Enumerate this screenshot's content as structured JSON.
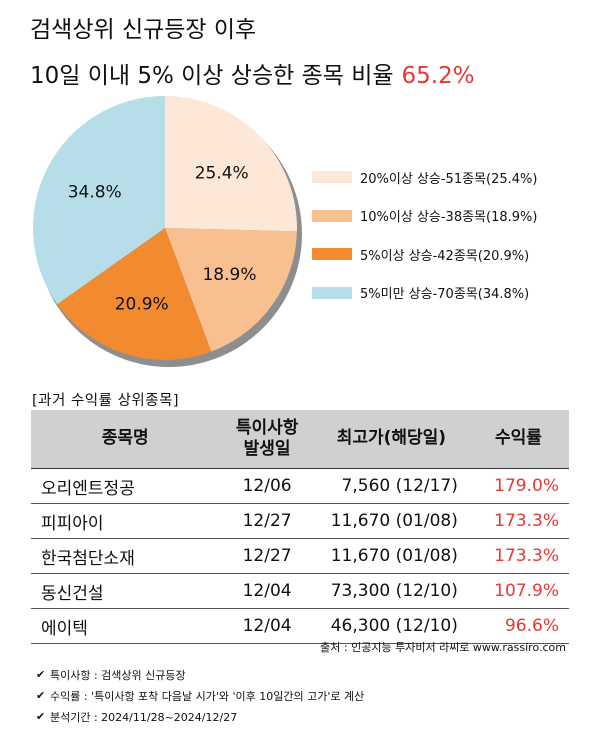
{
  "title": {
    "line1": "검색상위 신규등장 이후",
    "line2": "10일 이내 5% 이상 상승한 종목 비율",
    "highlight": "65.2%"
  },
  "chart_data": {
    "type": "pie",
    "slices": [
      {
        "label": "25.4%",
        "value": 25.4,
        "color": "#fde8d8",
        "legend": "20%이상 상승-51종목(25.4%)"
      },
      {
        "label": "18.9%",
        "value": 18.9,
        "color": "#f8bf90",
        "legend": "10%이상 상승-38종목(18.9%)"
      },
      {
        "label": "20.9%",
        "value": 20.9,
        "color": "#f28a30",
        "legend": "5%이상 상승-42종목(20.9%)"
      },
      {
        "label": "34.8%",
        "value": 34.8,
        "color": "#b7dde9",
        "legend": "5%미만 상승-70종목(34.8%)"
      }
    ]
  },
  "table": {
    "caption": "[과거 수익률 상위종목]",
    "headers": {
      "name": "종목명",
      "date_line1": "특이사항",
      "date_line2": "발생일",
      "high": "최고가(해당일)",
      "ret": "수익률"
    },
    "rows": [
      {
        "name": "오리엔트정공",
        "date": "12/06",
        "high": "7,560 (12/17)",
        "ret": "179.0%"
      },
      {
        "name": "피피아이",
        "date": "12/27",
        "high": "11,670 (01/08)",
        "ret": "173.3%"
      },
      {
        "name": "한국첨단소재",
        "date": "12/27",
        "high": "11,670 (01/08)",
        "ret": "173.3%"
      },
      {
        "name": "동신건설",
        "date": "12/04",
        "high": "73,300 (12/10)",
        "ret": "107.9%"
      },
      {
        "name": "에이텍",
        "date": "12/04",
        "high": "46,300 (12/10)",
        "ret": "96.6%"
      }
    ]
  },
  "source": "출처 : 인공지능 투자비서 라씨로 www.rassiro.com",
  "notes": [
    "특이사항 : 검색상위 신규등장",
    "수익률 : '특이사항 포착 다음날 시가'와 '이후 10일간의 고가'로 계산",
    "분석기간 : 2024/11/28~2024/12/27"
  ]
}
